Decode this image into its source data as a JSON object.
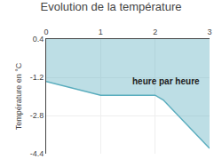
{
  "chart_data": {
    "type": "line",
    "title": "Evolution de la température",
    "y_label": "Température en °C",
    "x": [
      0,
      1.0,
      2.0,
      2.15,
      3.0
    ],
    "values": [
      -1.38,
      -1.95,
      -1.95,
      -2.15,
      -4.18
    ],
    "color": "#5aadbe",
    "xlim": [
      0,
      3
    ],
    "xticks": [
      0,
      1,
      2,
      3
    ],
    "ylim": [
      -4.4,
      0.4
    ],
    "yticks": [
      0.4,
      -1.2,
      -2.8,
      -4.4
    ],
    "grid": true,
    "annotations": [
      {
        "text": "heure par heure",
        "x": 1.55,
        "y": -1.1
      }
    ]
  }
}
